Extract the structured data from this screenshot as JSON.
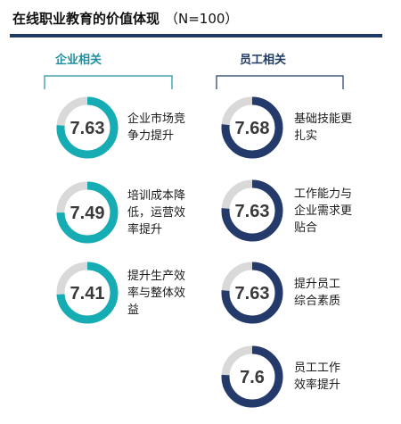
{
  "title": "在线职业教育的价值体现",
  "subtitle": "（N=100）",
  "colors": {
    "teal": "#16acb3",
    "navy": "#243a6b",
    "track": "#d9d9d9",
    "rule": "#1f3a63"
  },
  "chart_data": {
    "type": "donut",
    "scale_max": 10,
    "groups": [
      {
        "name": "企业相关",
        "color": "#16acb3",
        "items": [
          {
            "label": "企业市场竞争力提升",
            "value": 7.63
          },
          {
            "label": "培训成本降低，运营效率提升",
            "value": 7.49
          },
          {
            "label": "提升生产效率与整体效益",
            "value": 7.41
          }
        ]
      },
      {
        "name": "员工相关",
        "color": "#243a6b",
        "items": [
          {
            "label": "基础技能更扎实",
            "value": 7.68
          },
          {
            "label": "工作能力与企业需求更贴合",
            "value": 7.63
          },
          {
            "label": "提升员工综合素质",
            "value": 7.63
          },
          {
            "label": "员工工作效率提升",
            "value": 7.6
          }
        ]
      }
    ]
  },
  "label_lines": {
    "g0": [
      [
        "企业市场竞",
        "争力提升"
      ],
      [
        "培训成本降",
        "低，运营效",
        "率提升"
      ],
      [
        "提升生产效",
        "率与整体效",
        "益"
      ]
    ],
    "g1": [
      [
        "基础技能更",
        "扎实"
      ],
      [
        "工作能力与",
        "企业需求更",
        "贴合"
      ],
      [
        "提升员工",
        "综合素质"
      ],
      [
        "员工工作",
        "效率提升"
      ]
    ]
  }
}
